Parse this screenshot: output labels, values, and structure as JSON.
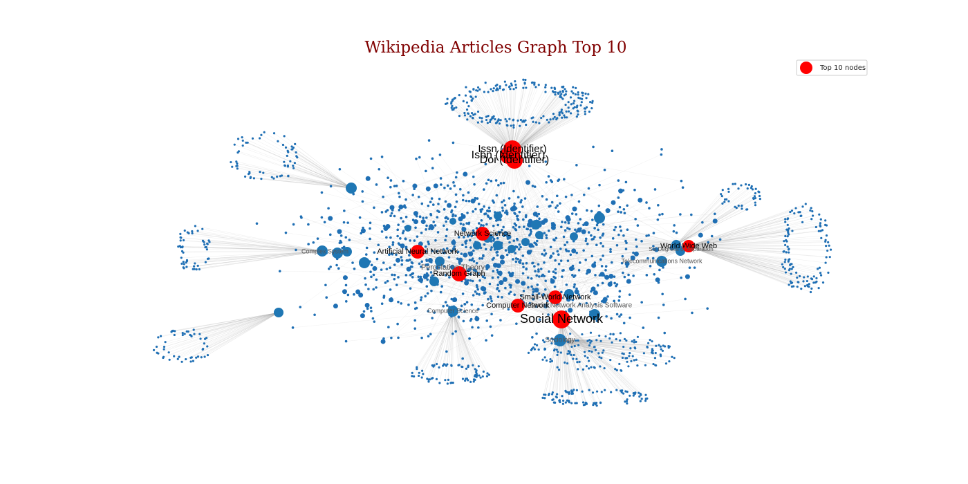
{
  "title": "Wikipedia Articles Graph Top 10",
  "legend": {
    "label": "Top 10 nodes"
  },
  "top_nodes": [
    {
      "label": "Issn (Identifier)"
    },
    {
      "label": "Isbn (Identifier)"
    },
    {
      "label": "Doi (Identifier)"
    },
    {
      "label": "Network Science"
    },
    {
      "label": "Artificial Neural Network"
    },
    {
      "label": "Random Graph"
    },
    {
      "label": "Small-World Network"
    },
    {
      "label": "Computer Network"
    },
    {
      "label": "Social Network"
    },
    {
      "label": "World Wide Web"
    }
  ],
  "other_nodes": [
    {
      "label": "Complex System"
    },
    {
      "label": "Percolation Theory"
    },
    {
      "label": "Computer Science"
    },
    {
      "label": "Social Network Analysis Software"
    },
    {
      "label": "Sociology"
    },
    {
      "label": "Telecommunications Network"
    },
    {
      "label": "Six Degrees of Separation"
    }
  ]
}
